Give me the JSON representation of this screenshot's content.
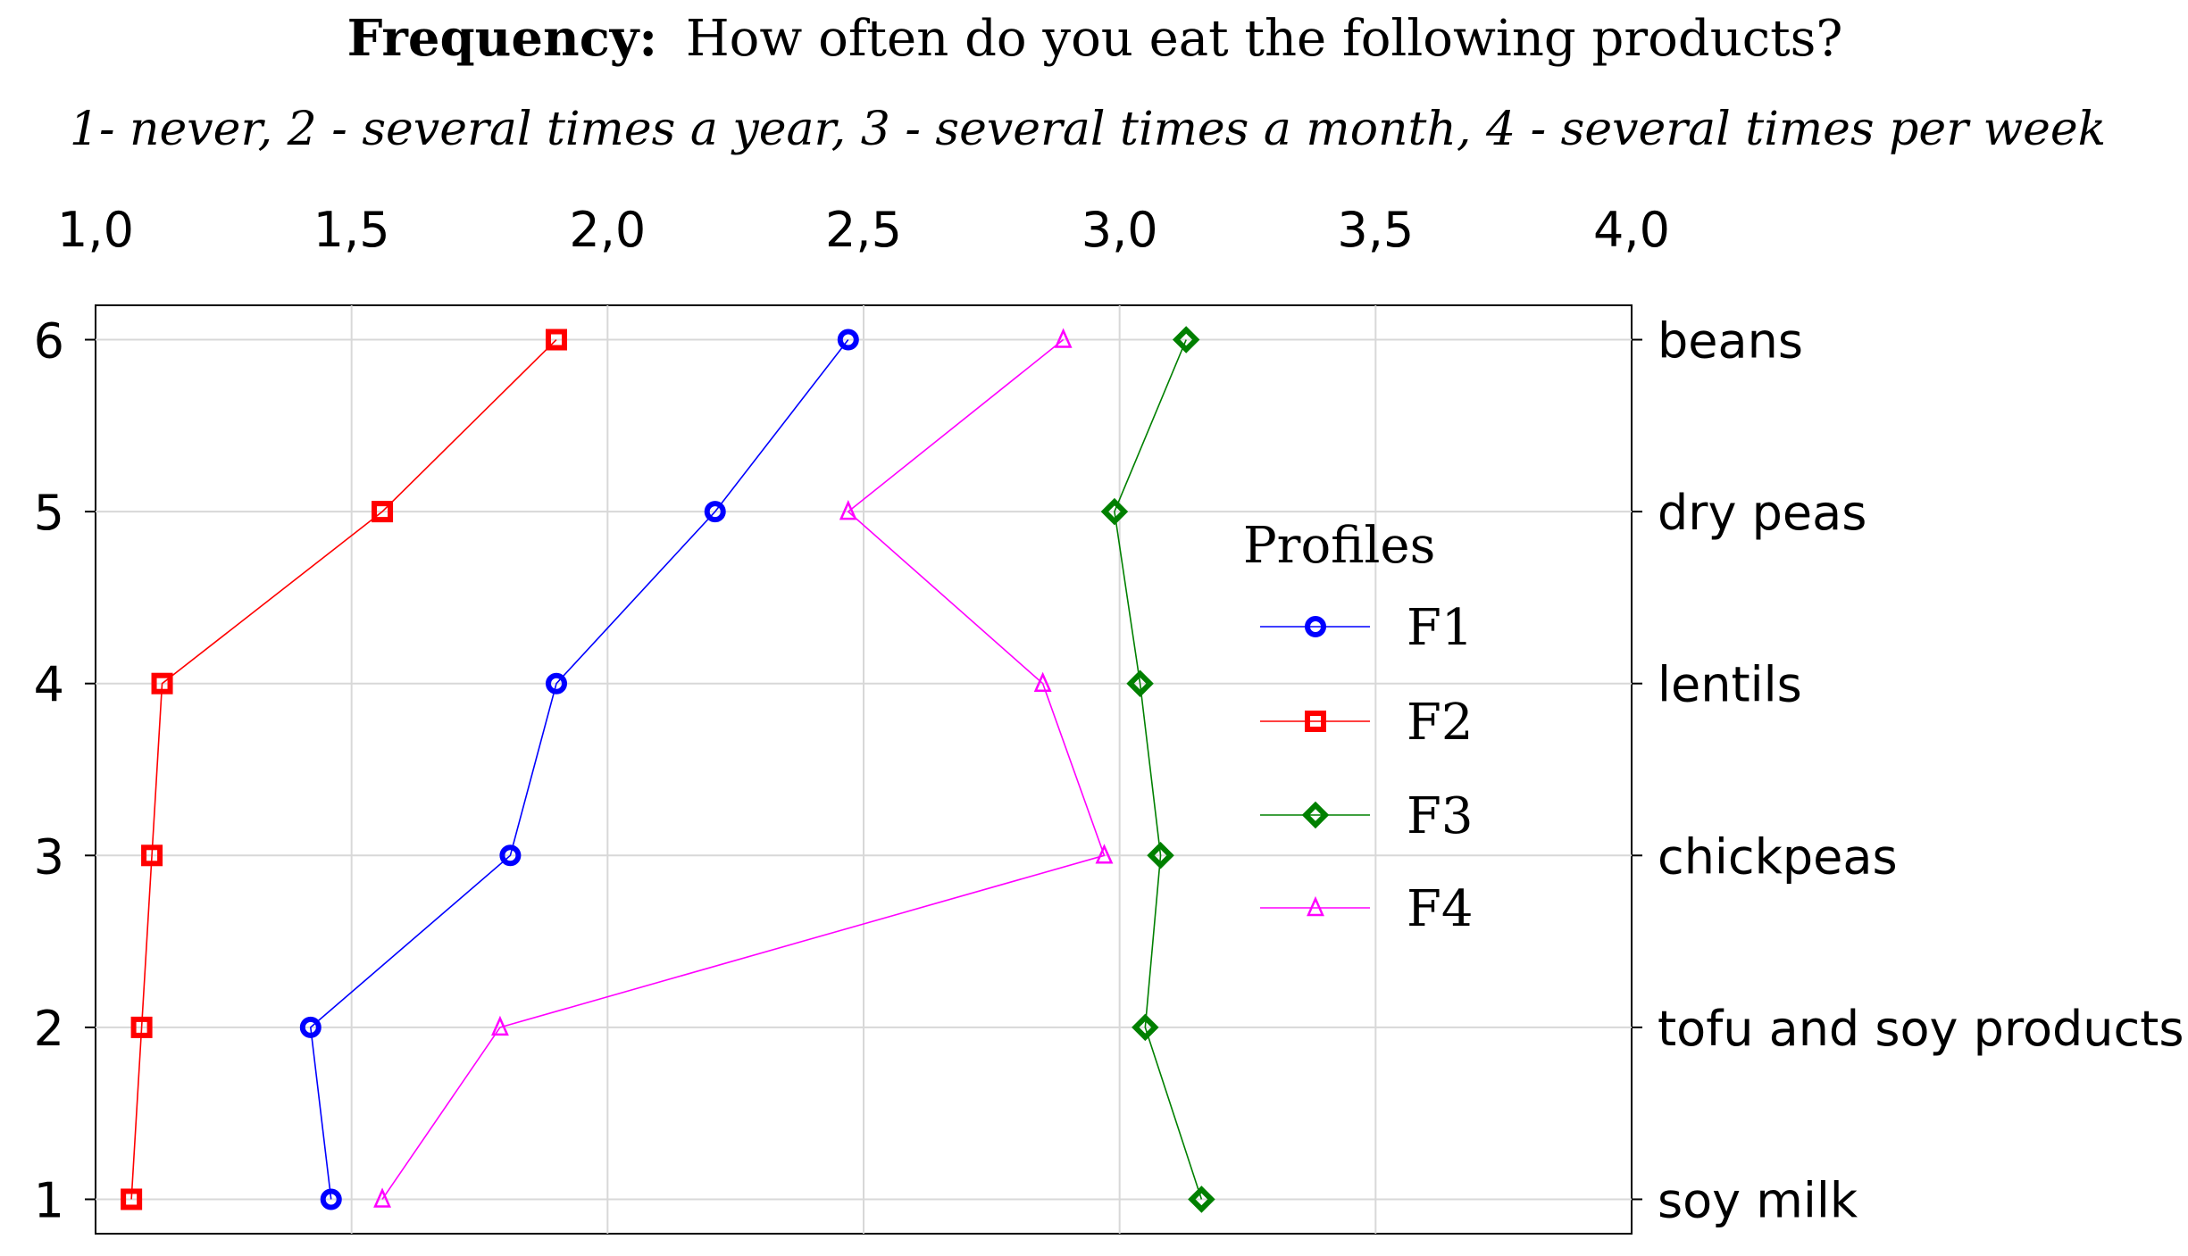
{
  "chart_data": {
    "type": "line",
    "title_bold": "Frequency:",
    "title_rest": "How often do you eat the following products?",
    "subtitle": "1- never, 2 - several times a year, 3 - several times a month, 4 - several times per week",
    "x_ticks": [
      "1,0",
      "1,5",
      "2,0",
      "2,5",
      "3,0",
      "3,5",
      "4,0"
    ],
    "x_tick_values": [
      1.0,
      1.5,
      2.0,
      2.5,
      3.0,
      3.5,
      4.0
    ],
    "xlim": [
      1.0,
      4.0
    ],
    "y_ticks": [
      "1",
      "2",
      "3",
      "4",
      "5",
      "6"
    ],
    "y_tick_values": [
      1,
      2,
      3,
      4,
      5,
      6
    ],
    "ylim": [
      0.8,
      6.2
    ],
    "categories": [
      "soy milk",
      "tofu and soy products",
      "chickpeas",
      "lentils",
      "dry peas",
      "beans"
    ],
    "grid": true,
    "legend_title": "Profiles",
    "legend_position": "center-right",
    "series": [
      {
        "name": "F1",
        "color": "#0000ff",
        "marker": "circle",
        "values": [
          1.46,
          1.42,
          1.81,
          1.9,
          2.21,
          2.47
        ]
      },
      {
        "name": "F2",
        "color": "#ff0000",
        "marker": "square",
        "values": [
          1.07,
          1.09,
          1.11,
          1.13,
          1.56,
          1.9
        ]
      },
      {
        "name": "F3",
        "color": "#008000",
        "marker": "diamond",
        "values": [
          3.16,
          3.05,
          3.08,
          3.04,
          2.99,
          3.13
        ]
      },
      {
        "name": "F4",
        "color": "#ff00ff",
        "marker": "triangle",
        "values": [
          1.56,
          1.79,
          2.97,
          2.85,
          2.47,
          2.89
        ]
      }
    ]
  }
}
